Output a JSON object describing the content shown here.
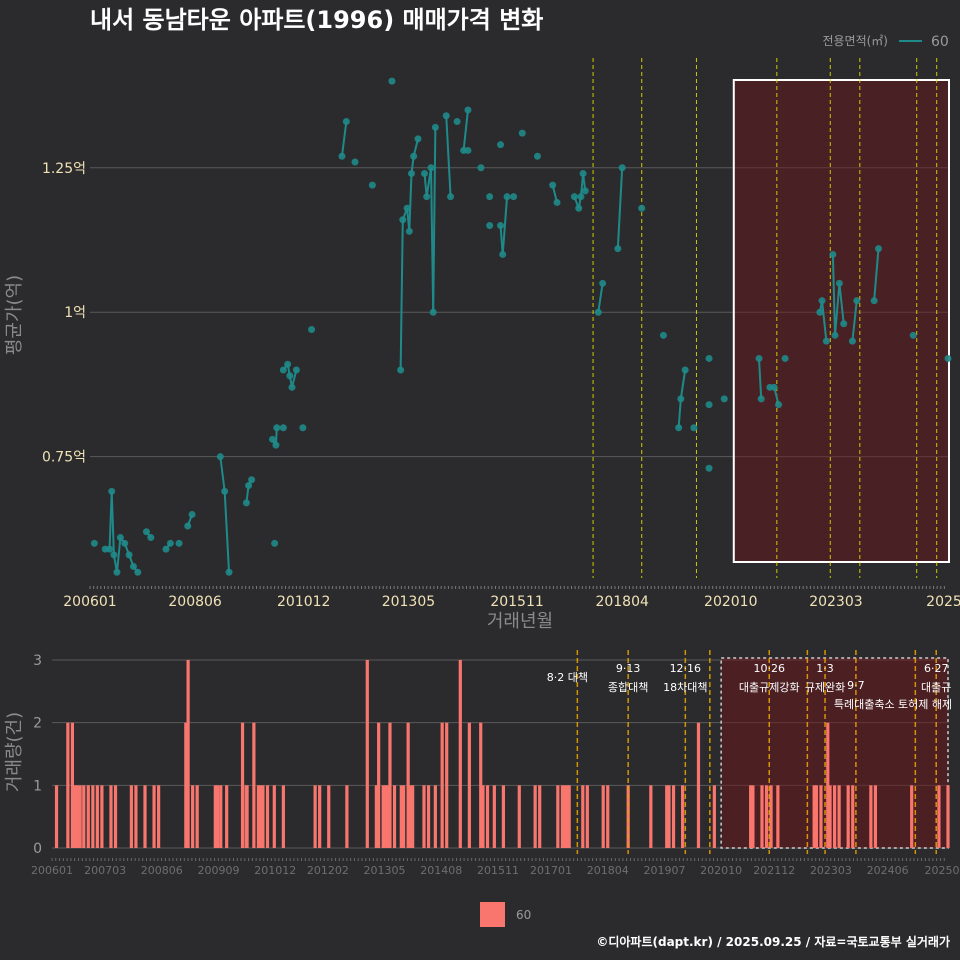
{
  "chart_data": [
    {
      "type": "line",
      "title": "내서 동남타운 아파트(1996) 매매가격 변화",
      "xlabel": "거래년월",
      "ylabel": "평균가(억)",
      "ylim": [
        0.54,
        1.44
      ],
      "xlim": [
        2006.0,
        2025.75
      ],
      "x_ticks": [
        "200601",
        "200806",
        "201012",
        "201305",
        "201511",
        "201804",
        "202010",
        "202303",
        "2025"
      ],
      "y_ticks": [
        {
          "value": 0.75,
          "label": "0.75억"
        },
        {
          "value": 1.0,
          "label": "1억"
        },
        {
          "value": 1.25,
          "label": "1.25억"
        }
      ],
      "legend": {
        "title": "전용면적(㎡)",
        "entries": [
          "60"
        ],
        "position": "top-right"
      },
      "policy_lines": [
        2017.58,
        2018.7,
        2019.96,
        2021.81,
        2023.04,
        2023.72,
        2025.03,
        2025.49
      ],
      "highlight_period": {
        "start": 2020.75,
        "end": 2025.75
      },
      "series": [
        {
          "name": "60",
          "points": [
            [
              2006.1,
              0.6
            ],
            [
              2006.35,
              0.59
            ],
            [
              2006.45,
              0.59
            ],
            [
              2006.5,
              0.69
            ],
            [
              2006.55,
              0.58
            ],
            [
              2006.62,
              0.55
            ],
            [
              2006.7,
              0.61
            ],
            [
              2006.8,
              0.6
            ],
            [
              2006.9,
              0.58
            ],
            [
              2007.0,
              0.56
            ],
            [
              2007.1,
              0.55
            ],
            [
              2007.3,
              0.62
            ],
            [
              2007.4,
              0.61
            ],
            [
              2007.75,
              0.59
            ],
            [
              2007.85,
              0.6
            ],
            [
              2008.05,
              0.6
            ],
            [
              2008.25,
              0.63
            ],
            [
              2008.35,
              0.65
            ],
            [
              2009.0,
              0.75
            ],
            [
              2009.1,
              0.69
            ],
            [
              2009.2,
              0.55
            ],
            [
              2009.6,
              0.67
            ],
            [
              2009.65,
              0.7
            ],
            [
              2009.72,
              0.71
            ],
            [
              2010.2,
              0.78
            ],
            [
              2010.28,
              0.77
            ],
            [
              2010.3,
              0.8
            ],
            [
              2010.25,
              0.6
            ],
            [
              2010.45,
              0.8
            ],
            [
              2010.45,
              0.9
            ],
            [
              2010.55,
              0.91
            ],
            [
              2010.6,
              0.89
            ],
            [
              2010.65,
              0.87
            ],
            [
              2010.75,
              0.9
            ],
            [
              2010.9,
              0.8
            ],
            [
              2011.1,
              0.97
            ],
            [
              2011.8,
              1.27
            ],
            [
              2011.9,
              1.33
            ],
            [
              2012.1,
              1.26
            ],
            [
              2012.5,
              1.22
            ],
            [
              2012.95,
              1.4
            ],
            [
              2013.15,
              0.9
            ],
            [
              2013.2,
              1.16
            ],
            [
              2013.3,
              1.18
            ],
            [
              2013.35,
              1.14
            ],
            [
              2013.4,
              1.24
            ],
            [
              2013.45,
              1.27
            ],
            [
              2013.55,
              1.3
            ],
            [
              2013.7,
              1.24
            ],
            [
              2013.75,
              1.2
            ],
            [
              2013.85,
              1.25
            ],
            [
              2013.9,
              1.0
            ],
            [
              2013.95,
              1.32
            ],
            [
              2014.2,
              1.34
            ],
            [
              2014.3,
              1.2
            ],
            [
              2014.45,
              1.33
            ],
            [
              2014.6,
              1.28
            ],
            [
              2014.7,
              1.35
            ],
            [
              2014.7,
              1.28
            ],
            [
              2015.0,
              1.25
            ],
            [
              2015.2,
              1.15
            ],
            [
              2015.2,
              1.2
            ],
            [
              2015.45,
              1.29
            ],
            [
              2015.45,
              1.15
            ],
            [
              2015.5,
              1.1
            ],
            [
              2015.6,
              1.2
            ],
            [
              2015.75,
              1.2
            ],
            [
              2015.95,
              1.31
            ],
            [
              2016.3,
              1.27
            ],
            [
              2016.65,
              1.22
            ],
            [
              2016.75,
              1.19
            ],
            [
              2017.15,
              1.2
            ],
            [
              2017.25,
              1.18
            ],
            [
              2017.3,
              1.2
            ],
            [
              2017.35,
              1.24
            ],
            [
              2017.4,
              1.21
            ],
            [
              2017.7,
              1.0
            ],
            [
              2017.8,
              1.05
            ],
            [
              2018.15,
              1.11
            ],
            [
              2018.25,
              1.25
            ],
            [
              2018.7,
              1.18
            ],
            [
              2019.2,
              0.96
            ],
            [
              2019.55,
              0.8
            ],
            [
              2019.6,
              0.85
            ],
            [
              2019.7,
              0.9
            ],
            [
              2019.9,
              0.8
            ],
            [
              2020.25,
              0.73
            ],
            [
              2020.25,
              0.84
            ],
            [
              2020.25,
              0.92
            ],
            [
              2020.6,
              0.85
            ],
            [
              2021.4,
              0.92
            ],
            [
              2021.45,
              0.85
            ],
            [
              2021.65,
              0.87
            ],
            [
              2021.75,
              0.87
            ],
            [
              2021.85,
              0.84
            ],
            [
              2022.0,
              0.92
            ],
            [
              2022.8,
              1.0
            ],
            [
              2022.85,
              1.02
            ],
            [
              2022.95,
              0.95
            ],
            [
              2023.1,
              1.1
            ],
            [
              2023.15,
              0.96
            ],
            [
              2023.25,
              1.05
            ],
            [
              2023.35,
              0.98
            ],
            [
              2023.55,
              0.95
            ],
            [
              2023.65,
              1.02
            ],
            [
              2024.05,
              1.02
            ],
            [
              2024.15,
              1.11
            ],
            [
              2024.95,
              0.96
            ],
            [
              2025.75,
              0.92
            ]
          ]
        }
      ]
    },
    {
      "type": "bar",
      "xlabel": "",
      "ylabel": "거래량(건)",
      "ylim": [
        0,
        3
      ],
      "xlim": [
        2006.0,
        2025.75
      ],
      "y_ticks": [
        "0",
        "1",
        "2",
        "3"
      ],
      "x_ticks": [
        "200601",
        "200703",
        "200806",
        "200909",
        "201012",
        "201202",
        "201305",
        "201408",
        "201511",
        "201701",
        "201804",
        "201907",
        "202010",
        "202112",
        "202303",
        "202406",
        "20250"
      ],
      "legend": {
        "entries": [
          "60"
        ],
        "position": "bottom"
      },
      "bars": [
        [
          2006.1,
          1
        ],
        [
          2006.35,
          2
        ],
        [
          2006.45,
          2
        ],
        [
          2006.5,
          1
        ],
        [
          2006.55,
          1
        ],
        [
          2006.62,
          1
        ],
        [
          2006.7,
          1
        ],
        [
          2006.8,
          1
        ],
        [
          2006.9,
          1
        ],
        [
          2007.0,
          1
        ],
        [
          2007.1,
          1
        ],
        [
          2007.3,
          1
        ],
        [
          2007.4,
          1
        ],
        [
          2007.75,
          1
        ],
        [
          2007.85,
          1
        ],
        [
          2008.05,
          1
        ],
        [
          2008.25,
          1
        ],
        [
          2008.35,
          1
        ],
        [
          2008.95,
          2
        ],
        [
          2009.0,
          3
        ],
        [
          2009.1,
          1
        ],
        [
          2009.2,
          1
        ],
        [
          2009.6,
          1
        ],
        [
          2009.65,
          1
        ],
        [
          2009.72,
          1
        ],
        [
          2009.85,
          1
        ],
        [
          2010.2,
          2
        ],
        [
          2010.28,
          1
        ],
        [
          2010.3,
          1
        ],
        [
          2010.45,
          2
        ],
        [
          2010.55,
          1
        ],
        [
          2010.6,
          1
        ],
        [
          2010.65,
          1
        ],
        [
          2010.75,
          1
        ],
        [
          2010.9,
          1
        ],
        [
          2011.1,
          1
        ],
        [
          2011.8,
          1
        ],
        [
          2011.9,
          1
        ],
        [
          2012.1,
          1
        ],
        [
          2012.5,
          1
        ],
        [
          2012.95,
          3
        ],
        [
          2013.15,
          1
        ],
        [
          2013.2,
          2
        ],
        [
          2013.3,
          1
        ],
        [
          2013.35,
          1
        ],
        [
          2013.4,
          1
        ],
        [
          2013.45,
          2
        ],
        [
          2013.55,
          1
        ],
        [
          2013.7,
          1
        ],
        [
          2013.75,
          1
        ],
        [
          2013.85,
          2
        ],
        [
          2013.9,
          1
        ],
        [
          2013.95,
          1
        ],
        [
          2014.2,
          1
        ],
        [
          2014.3,
          1
        ],
        [
          2014.45,
          1
        ],
        [
          2014.6,
          2
        ],
        [
          2014.7,
          2
        ],
        [
          2015.0,
          3
        ],
        [
          2015.2,
          2
        ],
        [
          2015.45,
          2
        ],
        [
          2015.5,
          1
        ],
        [
          2015.6,
          1
        ],
        [
          2015.75,
          1
        ],
        [
          2015.95,
          1
        ],
        [
          2016.3,
          1
        ],
        [
          2016.65,
          1
        ],
        [
          2016.75,
          1
        ],
        [
          2017.15,
          1
        ],
        [
          2017.25,
          1
        ],
        [
          2017.3,
          1
        ],
        [
          2017.35,
          1
        ],
        [
          2017.4,
          1
        ],
        [
          2017.7,
          1
        ],
        [
          2017.8,
          1
        ],
        [
          2018.15,
          1
        ],
        [
          2018.25,
          1
        ],
        [
          2018.7,
          1
        ],
        [
          2019.2,
          1
        ],
        [
          2019.55,
          1
        ],
        [
          2019.6,
          1
        ],
        [
          2019.7,
          1
        ],
        [
          2019.9,
          1
        ],
        [
          2020.25,
          2
        ],
        [
          2020.6,
          1
        ],
        [
          2021.4,
          1
        ],
        [
          2021.45,
          1
        ],
        [
          2021.65,
          1
        ],
        [
          2021.75,
          1
        ],
        [
          2021.85,
          1
        ],
        [
          2022.0,
          1
        ],
        [
          2022.8,
          1
        ],
        [
          2022.85,
          1
        ],
        [
          2022.95,
          1
        ],
        [
          2023.1,
          2
        ],
        [
          2023.15,
          1
        ],
        [
          2023.25,
          1
        ],
        [
          2023.35,
          1
        ],
        [
          2023.55,
          1
        ],
        [
          2023.65,
          1
        ],
        [
          2024.05,
          1
        ],
        [
          2024.15,
          1
        ],
        [
          2024.95,
          1
        ],
        [
          2025.55,
          1
        ],
        [
          2025.75,
          1
        ]
      ],
      "policy_lines": [
        {
          "x": 2017.58,
          "label": "8·2 대책",
          "sub": ""
        },
        {
          "x": 2018.7,
          "label": "9·13",
          "sub": "종합대책"
        },
        {
          "x": 2019.96,
          "label": "12·16",
          "sub": "18차대책"
        },
        {
          "x": 2020.5,
          "label": "",
          "sub": ""
        },
        {
          "x": 2021.81,
          "label": "10·26",
          "sub": "대출규제강화"
        },
        {
          "x": 2022.65,
          "label": "",
          "sub": ""
        },
        {
          "x": 2023.04,
          "label": "1·3",
          "sub": "규제완화"
        },
        {
          "x": 2023.72,
          "label": "",
          "sub": "9·7"
        },
        {
          "x": 2025.03,
          "label": "",
          "sub": ""
        },
        {
          "x": 2025.49,
          "label": "6·27",
          "sub": "대출규"
        }
      ],
      "extra_annotation": "특례대출축소 토허제 해제",
      "highlight_period": {
        "start": 2020.75,
        "end": 2025.75
      }
    }
  ],
  "caption": "©디아파트(dapt.kr) / 2025.09.25 / 자료=국토교통부 실거래가",
  "colors": {
    "line": "#1f8a8a",
    "bar": "#f8766d",
    "background": "#2b2b2d",
    "policy": "#e6e600"
  }
}
